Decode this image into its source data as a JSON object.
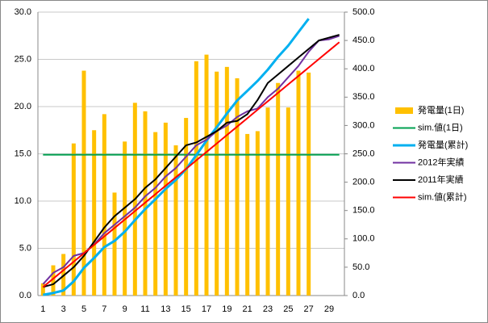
{
  "chart_data": {
    "type": "combo",
    "categories": [
      1,
      null,
      3,
      null,
      5,
      null,
      7,
      null,
      9,
      null,
      11,
      null,
      13,
      null,
      15,
      null,
      17,
      null,
      19,
      null,
      21,
      null,
      23,
      null,
      25,
      null,
      27,
      null,
      29,
      null
    ],
    "ylim": [
      0,
      30
    ],
    "yticks": [
      {
        "value": 0,
        "label": "0.0"
      },
      {
        "value": 5,
        "label": "5.0"
      },
      {
        "value": 10,
        "label": "10.0"
      },
      {
        "value": 15,
        "label": "15.0"
      },
      {
        "value": 20,
        "label": "20.0"
      },
      {
        "value": 25,
        "label": "25.0"
      },
      {
        "value": 30,
        "label": "30.0"
      }
    ],
    "y2lim": [
      0,
      500
    ],
    "y2ticks": [
      {
        "value": 0,
        "label": "0.0"
      },
      {
        "value": 50,
        "label": "50.0"
      },
      {
        "value": 100,
        "label": "100.0"
      },
      {
        "value": 150,
        "label": "150.0"
      },
      {
        "value": 200,
        "label": "200.0"
      },
      {
        "value": 250,
        "label": "250.0"
      },
      {
        "value": 300,
        "label": "300.0"
      },
      {
        "value": 350,
        "label": "350.0"
      },
      {
        "value": 400,
        "label": "400.0"
      },
      {
        "value": 450,
        "label": "450.0"
      },
      {
        "value": 500,
        "label": "500.0"
      }
    ],
    "grid": true,
    "legend": "right",
    "series": [
      {
        "name": "発電量(1日)",
        "type": "bar",
        "color": "#FFC000",
        "values": [
          1.3,
          3.2,
          4.4,
          16.1,
          23.8,
          17.5,
          19.2,
          10.9,
          16.3,
          20.4,
          19.5,
          17.3,
          18.3,
          15.9,
          18.8,
          24.8,
          25.5,
          23.7,
          24.2,
          23.0,
          17.1,
          17.4,
          19.9,
          22.5,
          19.9,
          23.8,
          23.6,
          null,
          null,
          null
        ]
      },
      {
        "name": "sim.値(1日)",
        "type": "line",
        "color": "#00A050",
        "width": 2,
        "values": [
          14.9,
          14.9,
          14.9,
          14.9,
          14.9,
          14.9,
          14.9,
          14.9,
          14.9,
          14.9,
          14.9,
          14.9,
          14.9,
          14.9,
          14.9,
          14.9,
          14.9,
          14.9,
          14.9,
          14.9,
          14.9,
          14.9,
          14.9,
          14.9,
          14.9,
          14.9,
          14.9,
          14.9,
          14.9,
          14.9
        ]
      },
      {
        "name": "発電量(累計)",
        "type": "line",
        "axis": "y2",
        "color": "#00B0F0",
        "width": 3,
        "values": [
          1.3,
          4.5,
          8.9,
          25,
          48.8,
          66.3,
          85.5,
          96.4,
          112.7,
          133.1,
          152.6,
          169.9,
          188.2,
          204.1,
          222.9,
          247.7,
          273.2,
          296.9,
          321.1,
          344.1,
          361.2,
          378.6,
          398.5,
          421,
          440.9,
          464.7,
          488.3,
          null,
          null,
          null
        ]
      },
      {
        "name": "2012年実績",
        "type": "line",
        "axis": "y2",
        "color": "#7030A0",
        "width": 2,
        "values": [
          20,
          40,
          50,
          70,
          75,
          90,
          110,
          125,
          140,
          155,
          175,
          190,
          210,
          225,
          245,
          265,
          275,
          290,
          300,
          315,
          325,
          330,
          350,
          365,
          385,
          405,
          430,
          450,
          452,
          458
        ]
      },
      {
        "name": "2011年実績",
        "type": "line",
        "axis": "y2",
        "color": "#000000",
        "width": 2,
        "values": [
          15,
          20,
          35,
          50,
          70,
          95,
          120,
          140,
          155,
          170,
          190,
          205,
          225,
          245,
          265,
          270,
          280,
          290,
          305,
          308,
          320,
          345,
          375,
          390,
          405,
          420,
          435,
          450,
          455,
          460
        ]
      },
      {
        "name": "sim.値(累計)",
        "type": "line",
        "axis": "y2",
        "color": "#FF0000",
        "width": 2,
        "values": [
          14.9,
          29.8,
          44.7,
          59.6,
          74.5,
          89.4,
          104.3,
          119.2,
          134.1,
          149,
          163.9,
          178.8,
          193.7,
          208.6,
          223.5,
          238.4,
          253.3,
          268.2,
          283.1,
          298,
          312.9,
          327.8,
          342.7,
          357.6,
          372.5,
          387.4,
          402.3,
          417.2,
          432.1,
          447
        ]
      }
    ]
  }
}
